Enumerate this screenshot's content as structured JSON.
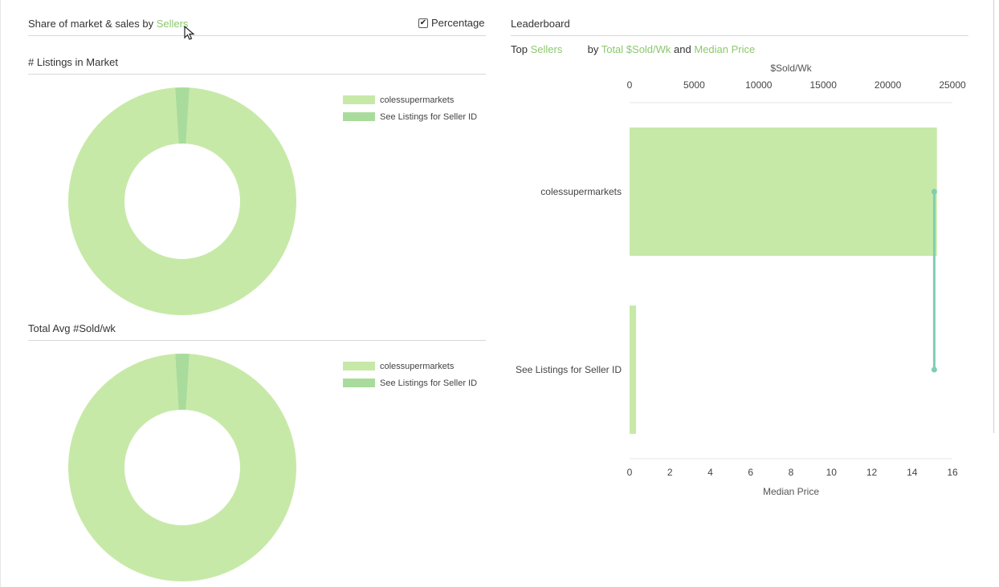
{
  "share": {
    "title_prefix": "Share of market & sales by ",
    "title_link": "Sellers",
    "percentage_label": "Percentage",
    "percentage_checked": true
  },
  "listings_panel": {
    "title": "# Listings in Market"
  },
  "sold_panel": {
    "title": "Total Avg #Sold/wk"
  },
  "leaderboard": {
    "title": "Leaderboard",
    "top_label": "Top",
    "top_link": "Sellers",
    "by_label": "by",
    "metric1_link": "Total $Sold/Wk",
    "and_label": "and",
    "metric2_link": "Median Price"
  },
  "colors": {
    "accent": "#8cc86e",
    "slice_main": "#c7e9a8",
    "slice_small": "#a9dc9c",
    "bar": "#c7e9a8",
    "median_line": "#7fcfb1"
  },
  "chart_data": [
    {
      "type": "pie",
      "title": "# Listings in Market",
      "donut": true,
      "labels": [
        "colessupermarkets",
        "See Listings for Seller ID"
      ],
      "values": [
        98,
        2
      ],
      "legend_position": "top-right"
    },
    {
      "type": "pie",
      "title": "Total Avg #Sold/wk",
      "donut": true,
      "labels": [
        "colessupermarkets",
        "See Listings for Seller ID"
      ],
      "values": [
        98,
        2
      ],
      "legend_position": "top-right"
    },
    {
      "type": "bar",
      "orientation": "horizontal",
      "categories": [
        "colessupermarkets",
        "See Listings for Seller ID"
      ],
      "series": [
        {
          "name": "$Sold/Wk",
          "values": [
            23800,
            500
          ]
        }
      ],
      "xlabel": "$Sold/Wk",
      "xlim": [
        0,
        25000
      ],
      "xticks": [
        0,
        5000,
        10000,
        15000,
        20000,
        25000
      ],
      "secondary": {
        "type": "line",
        "label": "Median Price",
        "values": [
          15.1,
          15.1
        ],
        "xlim": [
          0,
          16
        ],
        "xticks": [
          0,
          2,
          4,
          6,
          8,
          10,
          12,
          14,
          16
        ]
      }
    }
  ]
}
